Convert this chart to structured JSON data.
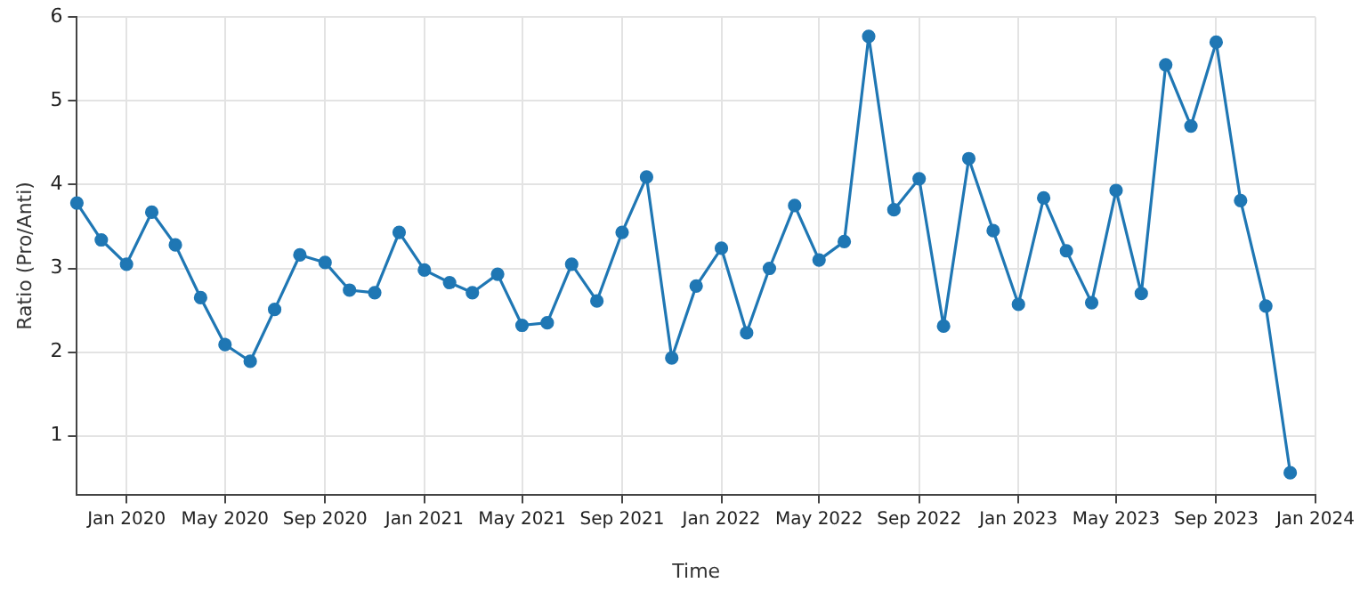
{
  "chart_data": {
    "type": "line",
    "xlabel": "Time",
    "ylabel": "Ratio (Pro/Anti)",
    "x": [
      "2019-11",
      "2019-12",
      "2020-01",
      "2020-02",
      "2020-03",
      "2020-04",
      "2020-05",
      "2020-06",
      "2020-07",
      "2020-08",
      "2020-09",
      "2020-10",
      "2020-11",
      "2020-12",
      "2021-01",
      "2021-02",
      "2021-03",
      "2021-04",
      "2021-05",
      "2021-06",
      "2021-07",
      "2021-08",
      "2021-09",
      "2021-10",
      "2021-11",
      "2021-12",
      "2022-01",
      "2022-02",
      "2022-03",
      "2022-04",
      "2022-05",
      "2022-06",
      "2022-07",
      "2022-08",
      "2022-09",
      "2022-10",
      "2022-11",
      "2022-12",
      "2023-01",
      "2023-02",
      "2023-03",
      "2023-04",
      "2023-05",
      "2023-06",
      "2023-07",
      "2023-08",
      "2023-09",
      "2023-10",
      "2023-11",
      "2023-12"
    ],
    "series": [
      {
        "color": "#1f77b4",
        "values": [
          3.78,
          3.34,
          3.05,
          3.67,
          3.28,
          2.65,
          2.09,
          1.89,
          2.51,
          3.16,
          3.07,
          2.74,
          2.71,
          3.43,
          2.98,
          2.83,
          2.71,
          2.93,
          2.32,
          2.35,
          3.05,
          2.61,
          3.43,
          4.09,
          1.93,
          2.79,
          3.24,
          2.23,
          3.0,
          3.75,
          3.1,
          3.32,
          5.77,
          3.7,
          4.07,
          2.31,
          4.31,
          3.45,
          2.57,
          3.84,
          3.21,
          2.59,
          3.93,
          2.7,
          5.43,
          4.7,
          5.7,
          3.81,
          2.55,
          0.56
        ]
      }
    ],
    "xlim": [
      "2019-11",
      "2024-01"
    ],
    "xticks": [
      {
        "value": "2020-01",
        "label": "Jan 2020"
      },
      {
        "value": "2020-05",
        "label": "May 2020"
      },
      {
        "value": "2020-09",
        "label": "Sep 2020"
      },
      {
        "value": "2021-01",
        "label": "Jan 2021"
      },
      {
        "value": "2021-05",
        "label": "May 2021"
      },
      {
        "value": "2021-09",
        "label": "Sep 2021"
      },
      {
        "value": "2022-01",
        "label": "Jan 2022"
      },
      {
        "value": "2022-05",
        "label": "May 2022"
      },
      {
        "value": "2022-09",
        "label": "Sep 2022"
      },
      {
        "value": "2023-01",
        "label": "Jan 2023"
      },
      {
        "value": "2023-05",
        "label": "May 2023"
      },
      {
        "value": "2023-09",
        "label": "Sep 2023"
      },
      {
        "value": "2024-01",
        "label": "Jan 2024"
      }
    ],
    "ylim": [
      0.3,
      6
    ],
    "yticks": [
      1,
      2,
      3,
      4,
      5,
      6
    ],
    "grid": true,
    "marker": "circle",
    "line_style": "solid",
    "legend": false
  }
}
